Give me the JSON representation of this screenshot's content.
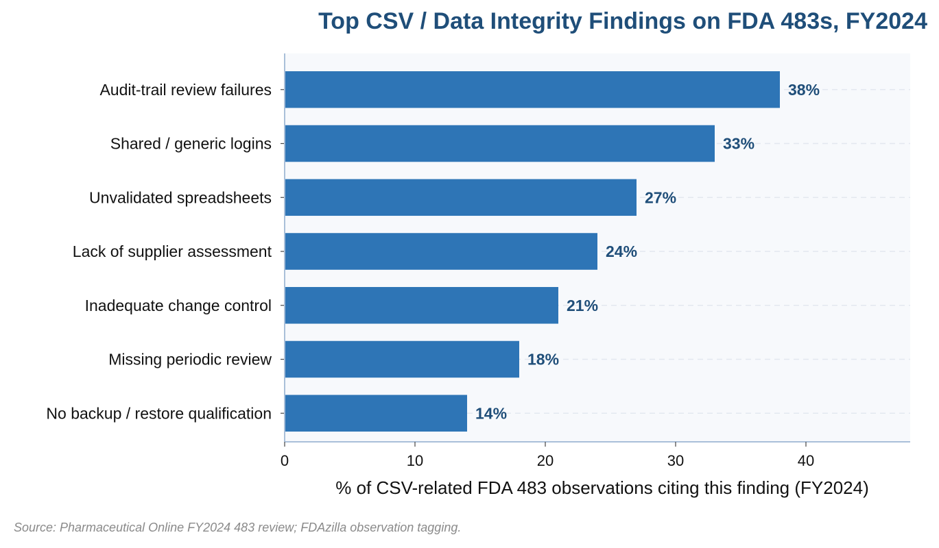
{
  "chart_data": {
    "type": "bar",
    "orientation": "horizontal",
    "title": "Top CSV / Data Integrity Findings on FDA 483s, FY2024",
    "xlabel": "% of CSV-related FDA 483 observations citing this finding (FY2024)",
    "ylabel": "",
    "categories": [
      "Audit-trail review failures",
      "Shared / generic logins",
      "Unvalidated spreadsheets",
      "Lack of supplier assessment",
      "Inadequate change control",
      "Missing periodic review",
      "No backup / restore qualification"
    ],
    "values": [
      38,
      33,
      27,
      24,
      21,
      18,
      14
    ],
    "value_labels": [
      "38%",
      "33%",
      "27%",
      "24%",
      "21%",
      "18%",
      "14%"
    ],
    "xlim": [
      0,
      48
    ],
    "xticks": [
      0,
      10,
      20,
      30,
      40
    ],
    "grid": "horizontal dashed",
    "legend": "none",
    "colors": {
      "bar": "#2e75b6",
      "value_label": "#1f4e79",
      "title": "#1f4e79",
      "plot_bg": "#f7f9fc",
      "axis": "#a9bfd9"
    }
  },
  "source": "Source: Pharmaceutical Online FY2024 483 review; FDAzilla observation tagging."
}
